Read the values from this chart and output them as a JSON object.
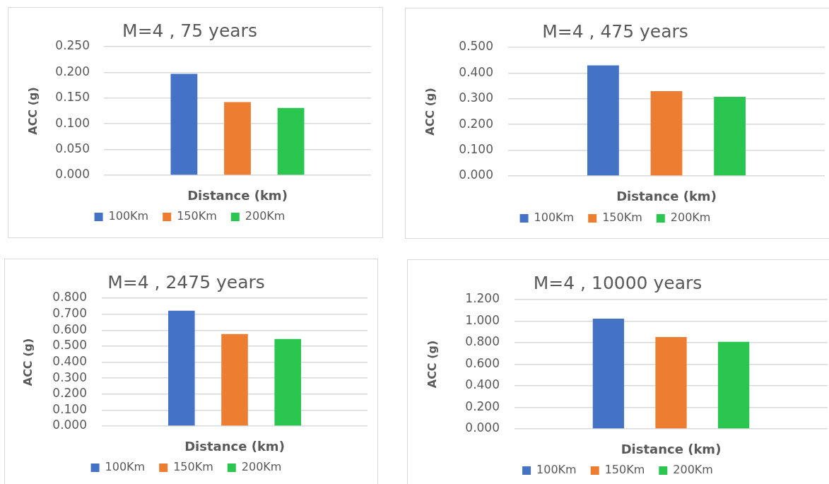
{
  "chart_data": [
    {
      "type": "bar",
      "title": "M=4 , 75 years",
      "xlabel": "Distance (km)",
      "ylabel": "ACC (g)",
      "categories": [
        null
      ],
      "series": [
        {
          "name": "100Km",
          "color": "#4472c4",
          "values": [
            0.197
          ]
        },
        {
          "name": "150Km",
          "color": "#ed7d31",
          "values": [
            0.142
          ]
        },
        {
          "name": "200Km",
          "color": "#2ac650",
          "values": [
            0.131
          ]
        }
      ],
      "ylim": [
        0,
        0.25
      ],
      "yticks": [
        {
          "value": 0,
          "label": "0.000"
        },
        {
          "value": 0.05,
          "label": "0.050"
        },
        {
          "value": 0.1,
          "label": "0.100"
        },
        {
          "value": 0.15,
          "label": "0.150"
        },
        {
          "value": 0.2,
          "label": "0.200"
        },
        {
          "value": 0.25,
          "label": "0.250"
        }
      ],
      "grid": "y",
      "legend": "bottom",
      "tick_labels": "y"
    },
    {
      "type": "bar",
      "title": "M=4 , 475 years",
      "xlabel": "Distance (km)",
      "ylabel": "ACC (g)",
      "categories": [
        null
      ],
      "series": [
        {
          "name": "100Km",
          "color": "#4472c4",
          "values": [
            0.43
          ]
        },
        {
          "name": "150Km",
          "color": "#ed7d31",
          "values": [
            0.33
          ]
        },
        {
          "name": "200Km",
          "color": "#2ac650",
          "values": [
            0.308
          ]
        }
      ],
      "ylim": [
        0,
        0.5
      ],
      "yticks": [
        {
          "value": 0,
          "label": "0.000"
        },
        {
          "value": 0.1,
          "label": "0.100"
        },
        {
          "value": 0.2,
          "label": "0.200"
        },
        {
          "value": 0.3,
          "label": "0.300"
        },
        {
          "value": 0.4,
          "label": "0.400"
        },
        {
          "value": 0.5,
          "label": "0.500"
        }
      ],
      "grid": "y",
      "legend": "bottom",
      "tick_labels": "y"
    },
    {
      "type": "bar",
      "title": "M=4 , 2475 years",
      "xlabel": "Distance (km)",
      "ylabel": "ACC (g)",
      "categories": [
        null
      ],
      "series": [
        {
          "name": "100Km",
          "color": "#4472c4",
          "values": [
            0.722
          ]
        },
        {
          "name": "150Km",
          "color": "#ed7d31",
          "values": [
            0.576
          ]
        },
        {
          "name": "200Km",
          "color": "#2ac650",
          "values": [
            0.545
          ]
        }
      ],
      "ylim": [
        0,
        0.8
      ],
      "yticks": [
        {
          "value": 0,
          "label": "0.000"
        },
        {
          "value": 0.1,
          "label": "0.100"
        },
        {
          "value": 0.2,
          "label": "0.200"
        },
        {
          "value": 0.3,
          "label": "0.300"
        },
        {
          "value": 0.4,
          "label": "0.400"
        },
        {
          "value": 0.5,
          "label": "0.500"
        },
        {
          "value": 0.6,
          "label": "0.600"
        },
        {
          "value": 0.7,
          "label": "0.700"
        },
        {
          "value": 0.8,
          "label": "0.800"
        }
      ],
      "grid": "y",
      "legend": "bottom",
      "tick_labels": "y"
    },
    {
      "type": "bar",
      "title": "M=4 , 10000 years",
      "xlabel": "Distance (km)",
      "ylabel": "ACC (g)",
      "categories": [
        null
      ],
      "series": [
        {
          "name": "100Km",
          "color": "#4472c4",
          "values": [
            1.023
          ]
        },
        {
          "name": "150Km",
          "color": "#ed7d31",
          "values": [
            0.853
          ]
        },
        {
          "name": "200Km",
          "color": "#2ac650",
          "values": [
            0.808
          ]
        }
      ],
      "ylim": [
        0,
        1.2
      ],
      "yticks": [
        {
          "value": 0,
          "label": "0.000"
        },
        {
          "value": 0.2,
          "label": "0.200"
        },
        {
          "value": 0.4,
          "label": "0.400"
        },
        {
          "value": 0.6,
          "label": "0.600"
        },
        {
          "value": 0.8,
          "label": "0.800"
        },
        {
          "value": 1,
          "label": "1.000"
        },
        {
          "value": 1.2,
          "label": "1.200"
        }
      ],
      "grid": "y",
      "legend": "bottom",
      "tick_labels": "y"
    }
  ]
}
